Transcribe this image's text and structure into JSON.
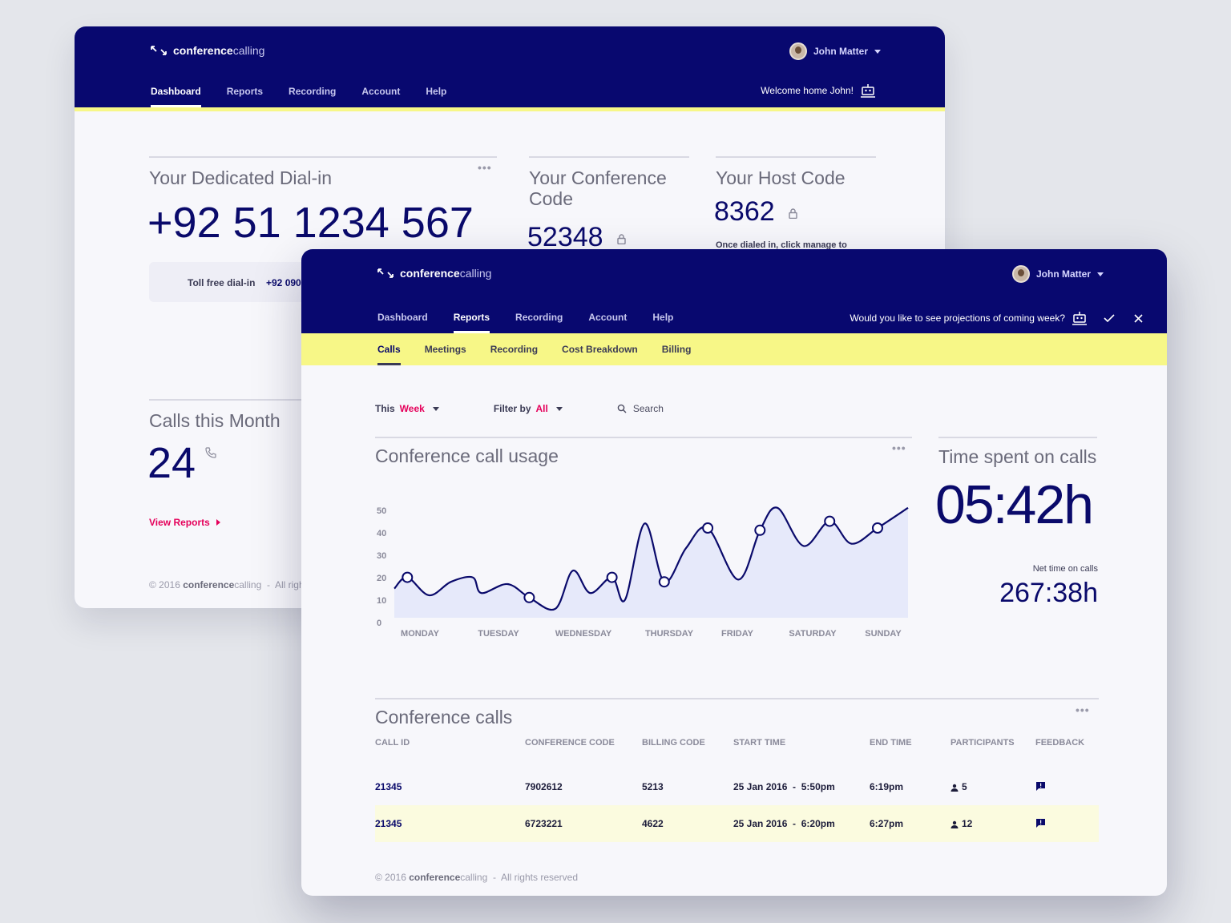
{
  "brand": {
    "bold": "conference",
    "light": "calling"
  },
  "user": {
    "name": "John Matter"
  },
  "dashboard": {
    "nav": [
      "Dashboard",
      "Reports",
      "Recording",
      "Account",
      "Help"
    ],
    "welcome": "Welcome home John!",
    "dial_in": {
      "title": "Your Dedicated Dial-in",
      "number": "+92 51 1234 567",
      "tollfree_label": "Toll free dial-in",
      "tollfree_value": "+92 090"
    },
    "conference_code": {
      "title": "Your Conference Code",
      "value": "52348"
    },
    "host_code": {
      "title": "Your Host Code",
      "value": "8362",
      "note": "Once dialed in, click manage to"
    },
    "calls_month": {
      "title": "Calls this Month",
      "value": "24"
    },
    "view_reports": "View Reports",
    "footer": {
      "year": "© 2016",
      "brand_bold": "conference",
      "brand_light": "calling",
      "rights": "All righ"
    }
  },
  "reports": {
    "nav": [
      "Dashboard",
      "Reports",
      "Recording",
      "Account",
      "Help"
    ],
    "prompt": "Would you like to see projections of coming week?",
    "subnav": [
      "Calls",
      "Meetings",
      "Recording",
      "Cost Breakdown",
      "Billing"
    ],
    "filters": {
      "period_prefix": "This",
      "period_value": "Week",
      "filter_prefix": "Filter by",
      "filter_value": "All",
      "search_placeholder": "Search"
    },
    "usage_title": "Conference call usage",
    "time_spent": {
      "title": "Time spent on calls",
      "value": "05:42h",
      "net_label": "Net time on calls",
      "net_value": "267:38h"
    },
    "table": {
      "title": "Conference calls",
      "headers": [
        "CALL ID",
        "CONFERENCE CODE",
        "BILLING CODE",
        "START TIME",
        "END TIME",
        "PARTICIPANTS",
        "FEEDBACK"
      ],
      "rows": [
        {
          "id": "21345",
          "conf": "7902612",
          "billing": "5213",
          "start": "25 Jan 2016  -  5:50pm",
          "end": "6:19pm",
          "participants": "5"
        },
        {
          "id": "21345",
          "conf": "6723221",
          "billing": "4622",
          "start": "25 Jan 2016  -  6:20pm",
          "end": "6:27pm",
          "participants": "12"
        }
      ]
    },
    "footer": {
      "year": "© 2016",
      "brand_bold": "conference",
      "brand_light": "calling",
      "rights": "All rights reserved"
    }
  },
  "chart_data": {
    "type": "area",
    "title": "Conference call usage",
    "categories": [
      "MONDAY",
      "TUESDAY",
      "WEDNESDAY",
      "THURSDAY",
      "FRIDAY",
      "SATURDAY",
      "SUNDAY"
    ],
    "yticks": [
      0,
      10,
      20,
      30,
      40,
      50
    ],
    "ylim": [
      0,
      50
    ],
    "x": [
      0,
      0.3,
      0.8,
      1.3,
      1.8,
      2.0,
      2.6,
      3.1,
      3.7,
      4.1,
      4.5,
      5.0,
      5.3,
      5.75,
      6.2,
      6.7,
      7.2,
      7.9,
      8.4,
      8.8,
      9.4,
      10.0,
      10.5,
      11.1,
      11.8
    ],
    "values": [
      13,
      18,
      10,
      16,
      18,
      11,
      15,
      9,
      4,
      21,
      11,
      18,
      8,
      42,
      16,
      31,
      40,
      17,
      39,
      49,
      32,
      43,
      33,
      40,
      49
    ],
    "markers_index": [
      1,
      7,
      11,
      14,
      16,
      18,
      21,
      23
    ],
    "grid": false,
    "legend": "none"
  }
}
